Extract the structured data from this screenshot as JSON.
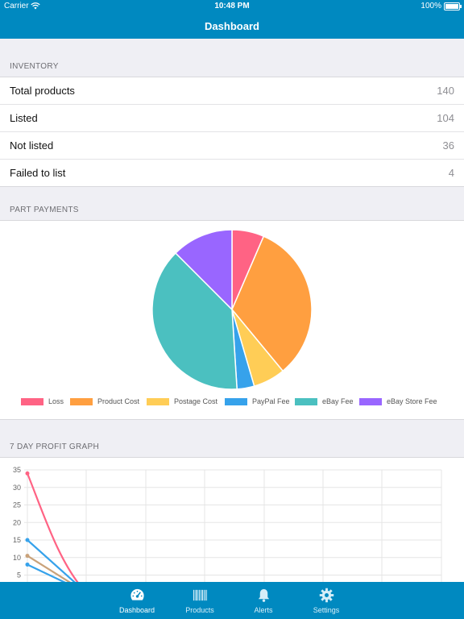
{
  "status_bar": {
    "carrier": "Carrier",
    "time": "10:48 PM",
    "battery": "100%"
  },
  "nav": {
    "title": "Dashboard"
  },
  "inventory": {
    "header": "INVENTORY",
    "rows": [
      {
        "label": "Total products",
        "value": "140"
      },
      {
        "label": "Listed",
        "value": "104"
      },
      {
        "label": "Not listed",
        "value": "36"
      },
      {
        "label": "Failed to list",
        "value": "4"
      }
    ]
  },
  "part_payments": {
    "header": "PART PAYMENTS",
    "chart_data": {
      "type": "pie",
      "labels": [
        "Loss",
        "Product Cost",
        "Postage Cost",
        "PayPal Fee",
        "eBay Fee",
        "eBay Store Fee"
      ],
      "values": [
        6.5,
        32.5,
        6.5,
        3.5,
        38.5,
        12.5
      ],
      "colors": [
        "#ff6384",
        "#ff9f40",
        "#ffcd56",
        "#36a2eb",
        "#4bc0c0",
        "#9966ff"
      ],
      "legend_position": "bottom"
    }
  },
  "profit_graph": {
    "header": "7 DAY PROFIT GRAPH",
    "chart_data": {
      "type": "line",
      "ylim": [
        0,
        35
      ],
      "yticks": [
        "35",
        "30",
        "25",
        "20",
        "15",
        "10",
        "5"
      ],
      "series": [
        {
          "color": "#ff6384",
          "values": [
            34,
            0
          ]
        },
        {
          "color": "#36a2eb",
          "values": [
            15,
            0
          ]
        },
        {
          "color": "#c9a27a",
          "values": [
            10.5,
            0
          ]
        },
        {
          "color": "#36a2eb",
          "values": [
            8,
            0
          ]
        }
      ],
      "grid": true
    }
  },
  "tabs": [
    {
      "label": "Dashboard",
      "icon": "dashboard-gauge-icon",
      "active": true
    },
    {
      "label": "Products",
      "icon": "barcode-icon",
      "active": false
    },
    {
      "label": "Alerts",
      "icon": "bell-icon",
      "active": false
    },
    {
      "label": "Settings",
      "icon": "gear-icon",
      "active": false
    }
  ]
}
